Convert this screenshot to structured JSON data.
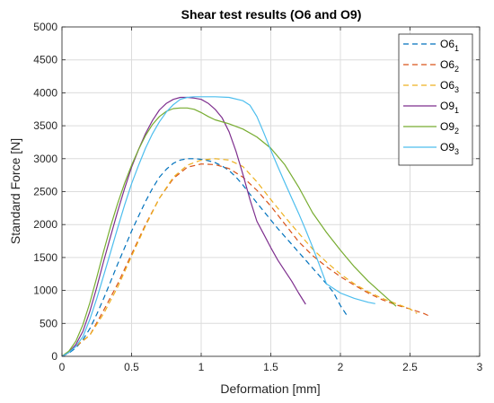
{
  "chart_data": {
    "type": "line",
    "title": "Shear test results (O6 and O9)",
    "xlabel": "Deformation [mm]",
    "ylabel": "Standard Force [N]",
    "xlim": [
      0,
      3
    ],
    "ylim": [
      0,
      5000
    ],
    "xticks": [
      0,
      0.5,
      1,
      1.5,
      2,
      2.5,
      3
    ],
    "xtick_labels": [
      "0",
      "0.5",
      "1",
      "1.5",
      "2",
      "2.5",
      "3"
    ],
    "yticks": [
      0,
      500,
      1000,
      1500,
      2000,
      2500,
      3000,
      3500,
      4000,
      4500,
      5000
    ],
    "ytick_labels": [
      "0",
      "500",
      "1000",
      "1500",
      "2000",
      "2500",
      "3000",
      "3500",
      "4000",
      "4500",
      "5000"
    ],
    "grid": true,
    "legend_position": "top-right",
    "series": [
      {
        "name": "O6",
        "sub": "1",
        "color": "#0072BD",
        "dash": "dashed",
        "x": [
          0,
          0.05,
          0.1,
          0.15,
          0.2,
          0.25,
          0.3,
          0.35,
          0.4,
          0.45,
          0.5,
          0.55,
          0.6,
          0.65,
          0.7,
          0.75,
          0.8,
          0.85,
          0.9,
          0.95,
          1.0,
          1.05,
          1.1,
          1.15,
          1.2,
          1.25,
          1.3,
          1.35,
          1.4,
          1.45,
          1.5,
          1.55,
          1.6,
          1.65,
          1.7,
          1.75,
          1.8,
          1.85,
          1.9,
          1.95,
          2.0,
          2.05
        ],
        "y": [
          0,
          50,
          130,
          250,
          420,
          640,
          880,
          1140,
          1400,
          1650,
          1900,
          2130,
          2350,
          2550,
          2720,
          2840,
          2930,
          2980,
          3000,
          3000,
          2990,
          2970,
          2940,
          2890,
          2820,
          2720,
          2600,
          2460,
          2330,
          2200,
          2070,
          1940,
          1820,
          1700,
          1580,
          1460,
          1340,
          1220,
          1100,
          970,
          770,
          610
        ]
      },
      {
        "name": "O6",
        "sub": "2",
        "color": "#D95319",
        "dash": "dashed",
        "x": [
          0,
          0.1,
          0.2,
          0.3,
          0.4,
          0.5,
          0.6,
          0.7,
          0.8,
          0.9,
          1.0,
          1.1,
          1.2,
          1.3,
          1.4,
          1.5,
          1.6,
          1.7,
          1.8,
          1.9,
          2.0,
          2.1,
          2.2,
          2.3,
          2.4,
          2.5,
          2.6,
          2.65
        ],
        "y": [
          0,
          150,
          320,
          700,
          1100,
          1550,
          2000,
          2400,
          2700,
          2870,
          2920,
          2910,
          2850,
          2720,
          2520,
          2280,
          2010,
          1740,
          1530,
          1360,
          1210,
          1080,
          960,
          860,
          780,
          720,
          650,
          600
        ]
      },
      {
        "name": "O6",
        "sub": "3",
        "color": "#EDB120",
        "dash": "dashed",
        "x": [
          0,
          0.1,
          0.2,
          0.3,
          0.4,
          0.5,
          0.6,
          0.7,
          0.8,
          0.9,
          1.0,
          1.1,
          1.2,
          1.3,
          1.4,
          1.5,
          1.6,
          1.7,
          1.8,
          1.9,
          2.0,
          2.1,
          2.2,
          2.3,
          2.4,
          2.5,
          2.55
        ],
        "y": [
          0,
          160,
          320,
          650,
          1050,
          1520,
          1980,
          2400,
          2720,
          2900,
          2980,
          3000,
          2980,
          2880,
          2650,
          2380,
          2120,
          1870,
          1630,
          1430,
          1250,
          1100,
          980,
          880,
          800,
          720,
          650
        ]
      },
      {
        "name": "O9",
        "sub": "1",
        "color": "#7E2F8E",
        "dash": "solid",
        "x": [
          0,
          0.05,
          0.1,
          0.15,
          0.2,
          0.25,
          0.3,
          0.35,
          0.4,
          0.45,
          0.5,
          0.55,
          0.6,
          0.65,
          0.7,
          0.75,
          0.8,
          0.85,
          0.9,
          0.95,
          1.0,
          1.05,
          1.1,
          1.15,
          1.2,
          1.25,
          1.3,
          1.35,
          1.4,
          1.45,
          1.5,
          1.55,
          1.6,
          1.65,
          1.7,
          1.75
        ],
        "y": [
          0,
          60,
          180,
          380,
          680,
          1050,
          1450,
          1830,
          2200,
          2550,
          2870,
          3140,
          3380,
          3580,
          3740,
          3840,
          3900,
          3930,
          3930,
          3920,
          3900,
          3840,
          3750,
          3620,
          3410,
          3110,
          2760,
          2380,
          2050,
          1850,
          1650,
          1460,
          1300,
          1140,
          960,
          790
        ]
      },
      {
        "name": "O9",
        "sub": "2",
        "color": "#77AC30",
        "dash": "solid",
        "x": [
          0,
          0.05,
          0.1,
          0.15,
          0.2,
          0.25,
          0.3,
          0.35,
          0.4,
          0.45,
          0.5,
          0.55,
          0.6,
          0.65,
          0.7,
          0.75,
          0.8,
          0.85,
          0.9,
          0.95,
          1.0,
          1.05,
          1.1,
          1.2,
          1.3,
          1.4,
          1.5,
          1.6,
          1.7,
          1.8,
          1.9,
          2.0,
          2.1,
          2.2,
          2.3,
          2.4
        ],
        "y": [
          0,
          80,
          230,
          480,
          810,
          1200,
          1600,
          1980,
          2320,
          2630,
          2900,
          3140,
          3350,
          3520,
          3640,
          3720,
          3760,
          3770,
          3770,
          3750,
          3700,
          3640,
          3590,
          3530,
          3450,
          3330,
          3160,
          2910,
          2570,
          2180,
          1880,
          1610,
          1360,
          1140,
          950,
          760
        ]
      },
      {
        "name": "O9",
        "sub": "3",
        "color": "#4DBEEE",
        "dash": "solid",
        "x": [
          0,
          0.05,
          0.1,
          0.15,
          0.2,
          0.25,
          0.3,
          0.35,
          0.4,
          0.45,
          0.5,
          0.55,
          0.6,
          0.65,
          0.7,
          0.75,
          0.8,
          0.85,
          0.9,
          0.95,
          1.0,
          1.1,
          1.2,
          1.3,
          1.35,
          1.4,
          1.45,
          1.5,
          1.55,
          1.6,
          1.65,
          1.7,
          1.75,
          1.8,
          1.85,
          1.9,
          2.0,
          2.1,
          2.2,
          2.25
        ],
        "y": [
          0,
          60,
          150,
          300,
          560,
          880,
          1230,
          1590,
          1950,
          2300,
          2620,
          2900,
          3160,
          3380,
          3560,
          3710,
          3820,
          3900,
          3930,
          3940,
          3940,
          3940,
          3930,
          3880,
          3810,
          3640,
          3390,
          3130,
          2880,
          2640,
          2400,
          2170,
          1920,
          1660,
          1380,
          1100,
          960,
          880,
          820,
          800
        ]
      }
    ]
  }
}
